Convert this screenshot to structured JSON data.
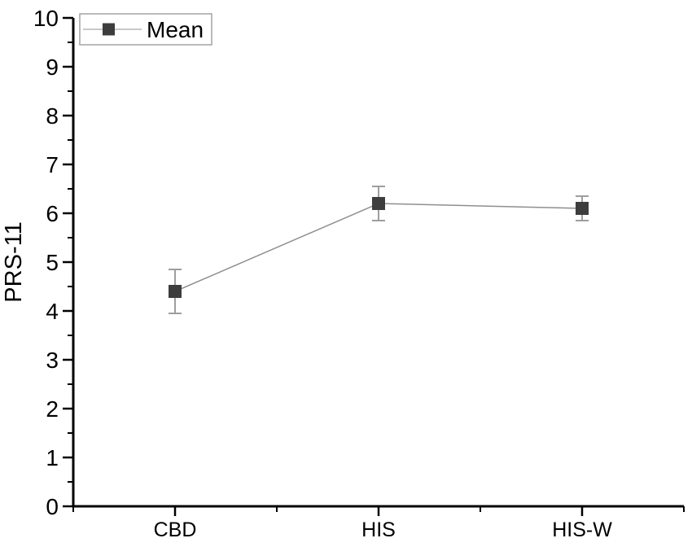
{
  "chart_data": {
    "type": "line",
    "title": "",
    "categories": [
      "CBD",
      "HIS",
      "HIS-W"
    ],
    "series": [
      {
        "name": "Mean",
        "marker": "square",
        "values": [
          4.4,
          6.2,
          6.1
        ],
        "errors": [
          0.45,
          0.35,
          0.25
        ]
      }
    ],
    "xlabel": "",
    "ylabel": "PRS-11",
    "ylim": [
      0,
      10
    ],
    "y_major_tick_step": 1,
    "y_minor_tick_step": 0.5,
    "y_tick_labels": [
      "0",
      "1",
      "2",
      "3",
      "4",
      "5",
      "6",
      "7",
      "8",
      "9",
      "10"
    ],
    "grid": false,
    "legend": {
      "position": "top-left",
      "entries": [
        {
          "label": "Mean",
          "marker": "square"
        }
      ]
    }
  },
  "colors": {
    "background": "#ffffff",
    "axis": "#000000",
    "tick_label": "#000000",
    "marker": "#3d3d3d",
    "series_line": "#8f8f8f",
    "error_bar": "#9e9e9e",
    "legend_border": "#a3a3a3",
    "legend_line": "#b5b5b5",
    "legend_fill": "#ffffff"
  }
}
